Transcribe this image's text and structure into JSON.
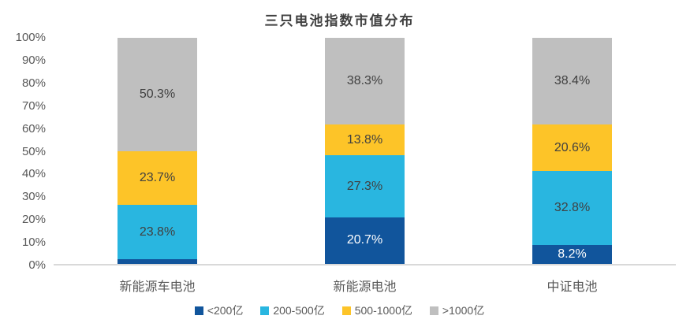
{
  "chart_data": {
    "type": "bar",
    "stacked": true,
    "orientation": "vertical",
    "title": "三只电池指数市值分布",
    "categories": [
      "新能源车电池",
      "新能源电池",
      "中证电池"
    ],
    "series": [
      {
        "name": "<200亿",
        "color": "#11559C",
        "label_color": "#FFFFFF",
        "values": [
          2.2,
          20.7,
          8.2
        ]
      },
      {
        "name": "200-500亿",
        "color": "#29B6E0",
        "label_color": "#404040",
        "values": [
          23.8,
          27.3,
          32.8
        ]
      },
      {
        "name": "500-1000亿",
        "color": "#FDC428",
        "label_color": "#404040",
        "values": [
          23.7,
          13.8,
          20.6
        ]
      },
      {
        "name": ">1000亿",
        "color": "#BFBFBF",
        "label_color": "#404040",
        "values": [
          50.3,
          38.3,
          38.4
        ]
      }
    ],
    "data_label_suffix": "%",
    "y_ticks": [
      "100%",
      "90%",
      "80%",
      "70%",
      "60%",
      "50%",
      "40%",
      "30%",
      "20%",
      "10%",
      "0%"
    ],
    "ylim": [
      0,
      100
    ],
    "grid": false,
    "legend_position": "bottom",
    "axis_line_color": "#D9D9D9",
    "tick_label_color": "#595959",
    "title_color": "#404040"
  }
}
